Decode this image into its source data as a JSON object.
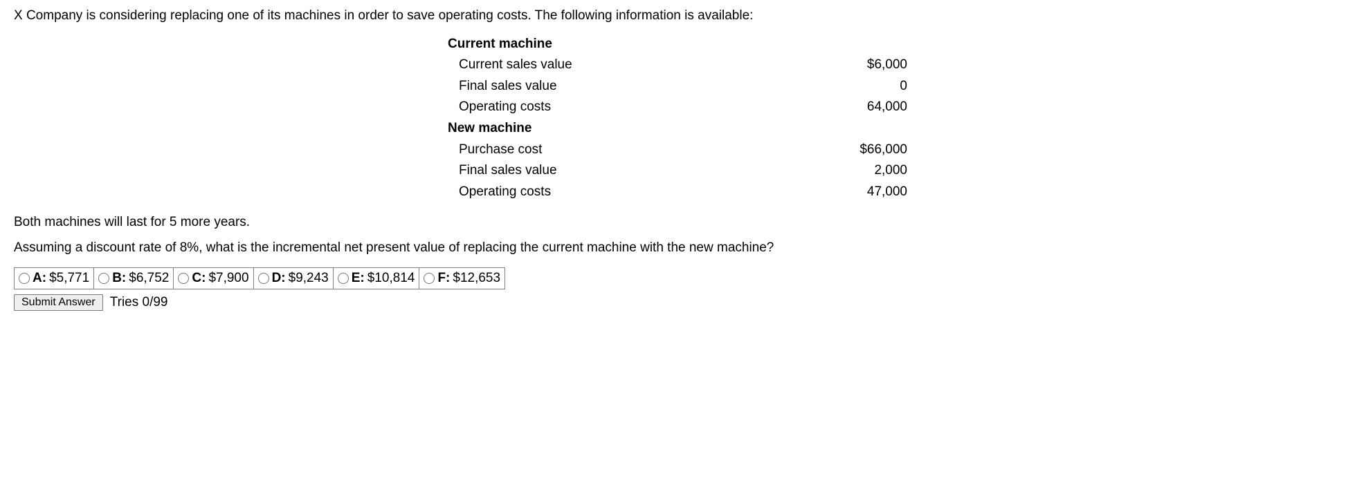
{
  "intro_text": "X Company is considering replacing one of its machines in order to save operating costs. The following information is available:",
  "current_machine": {
    "header": "Current machine",
    "rows": [
      {
        "label": "Current sales value",
        "value": "$6,000"
      },
      {
        "label": "Final sales value",
        "value": "0"
      },
      {
        "label": "Operating costs",
        "value": "64,000"
      }
    ]
  },
  "new_machine": {
    "header": "New machine",
    "rows": [
      {
        "label": "Purchase cost",
        "value": "$66,000"
      },
      {
        "label": "Final sales value",
        "value": "2,000"
      },
      {
        "label": "Operating costs",
        "value": "47,000"
      }
    ]
  },
  "context_line": "Both machines will last for 5 more years.",
  "question_prompt": "Assuming a discount rate of 8%, what is the incremental net present value of replacing the current machine with the new machine?",
  "options": [
    {
      "letter": "A:",
      "value": "$5,771"
    },
    {
      "letter": "B:",
      "value": "$6,752"
    },
    {
      "letter": "C:",
      "value": "$7,900"
    },
    {
      "letter": "D:",
      "value": "$9,243"
    },
    {
      "letter": "E:",
      "value": "$10,814"
    },
    {
      "letter": "F:",
      "value": "$12,653"
    }
  ],
  "submit_label": "Submit Answer",
  "tries_text": "Tries 0/99"
}
